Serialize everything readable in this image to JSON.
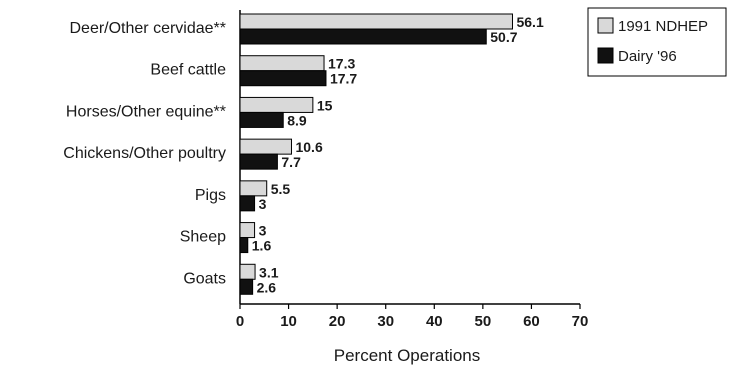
{
  "chart_data": {
    "type": "bar",
    "orientation": "horizontal",
    "categories": [
      "Deer/Other cervidae**",
      "Beef cattle",
      "Horses/Other equine**",
      "Chickens/Other poultry",
      "Pigs",
      "Sheep",
      "Goats"
    ],
    "series": [
      {
        "name": "1991 NDHEP",
        "values": [
          56.1,
          17.3,
          15,
          10.6,
          5.5,
          3,
          3.1
        ],
        "labels": [
          "56.1",
          "17.3",
          "15",
          "10.6",
          "5.5",
          "3",
          "3.1"
        ],
        "color": "#d9d9d9"
      },
      {
        "name": "Dairy '96",
        "values": [
          50.7,
          17.7,
          8.9,
          7.7,
          3,
          1.6,
          2.6
        ],
        "labels": [
          "50.7",
          "17.7",
          "8.9",
          "7.7",
          "3",
          "1.6",
          "2.6"
        ],
        "color": "#111111"
      }
    ],
    "xlabel": "Percent Operations",
    "ylabel": "",
    "xlim": [
      0,
      70
    ],
    "xticks": [
      0,
      10,
      20,
      30,
      40,
      50,
      60,
      70
    ],
    "grid": false,
    "legend_position": "top-right"
  }
}
